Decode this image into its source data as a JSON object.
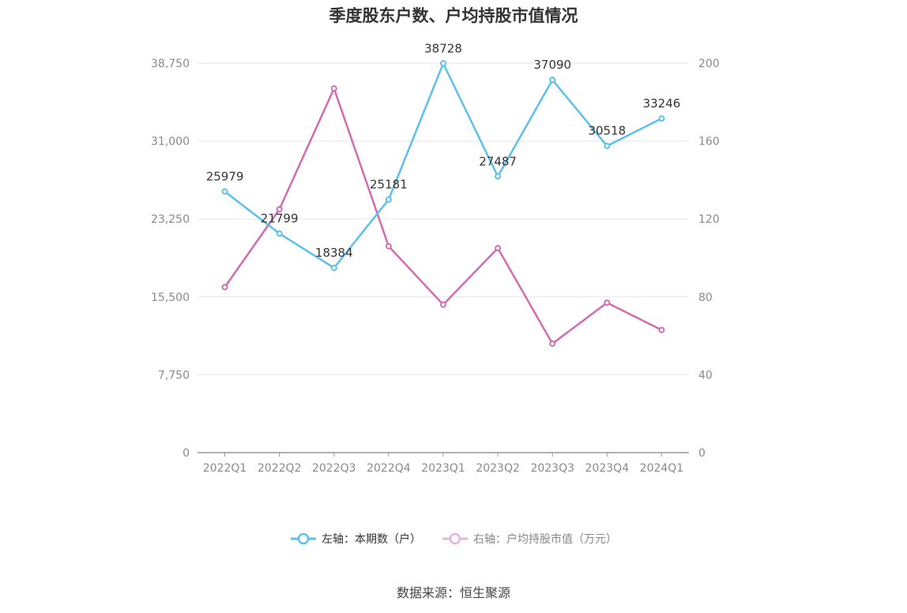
{
  "title": "季度股东户数、户均持股市值情况",
  "legend": {
    "left_label": "左轴：本期数（户）",
    "right_label": "右轴：户均持股市值（万元）"
  },
  "source": "数据来源：恒生聚源",
  "chart_data": {
    "type": "line",
    "categories": [
      "2022Q1",
      "2022Q2",
      "2022Q3",
      "2022Q4",
      "2023Q1",
      "2023Q2",
      "2023Q3",
      "2023Q4",
      "2024Q1"
    ],
    "y_left": {
      "min": 0,
      "max": 38750,
      "ticks": [
        0,
        7750,
        15500,
        23250,
        31000,
        38750
      ],
      "tick_labels": [
        "0",
        "7,750",
        "15,500",
        "23,250",
        "31,000",
        "38,750"
      ]
    },
    "y_right": {
      "min": 0,
      "max": 200,
      "ticks": [
        0,
        40,
        80,
        120,
        160,
        200
      ],
      "tick_labels": [
        "0",
        "40",
        "80",
        "120",
        "160",
        "200"
      ]
    },
    "grid": true,
    "legend_position": "bottom",
    "series": [
      {
        "name": "左轴：本期数（户）",
        "axis": "left",
        "color": "#5bc0eb",
        "values": [
          25979,
          21799,
          18384,
          25181,
          38728,
          27487,
          37090,
          30518,
          33246
        ],
        "labels": [
          "25979",
          "21799",
          "18384",
          "25181",
          "38728",
          "27487",
          "37090",
          "30518",
          "33246"
        ]
      },
      {
        "name": "右轴：户均持股市值（万元）",
        "axis": "right",
        "color": "#d36bb0",
        "values": [
          85,
          125,
          187,
          106,
          76,
          105,
          56,
          77,
          63
        ]
      }
    ]
  }
}
